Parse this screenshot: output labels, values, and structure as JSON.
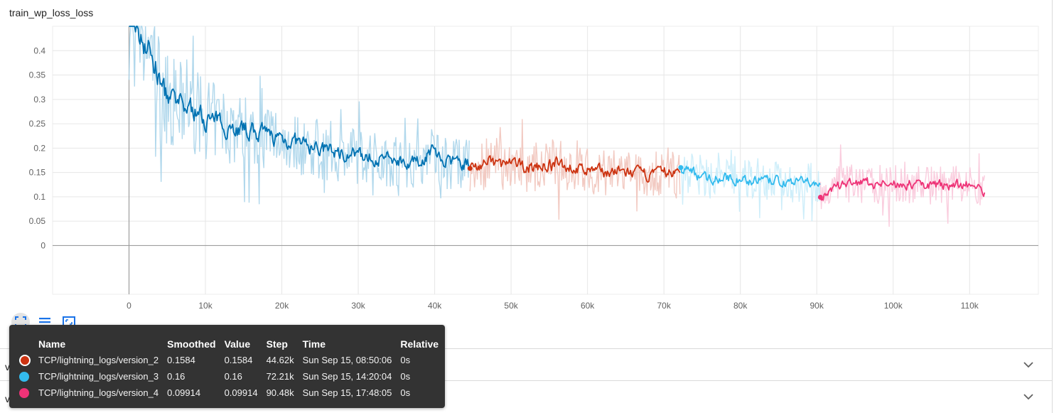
{
  "card": {
    "title": "train_wp_loss_loss"
  },
  "chart_data": {
    "type": "line",
    "title": "train_wp_loss_loss",
    "xlabel": "",
    "ylabel": "",
    "xlim": [
      -10000,
      119000
    ],
    "ylim": [
      -0.1,
      0.45
    ],
    "x_ticks": [
      0,
      10000,
      20000,
      30000,
      40000,
      50000,
      60000,
      70000,
      80000,
      90000,
      100000,
      110000
    ],
    "x_tick_labels": [
      "0",
      "10k",
      "20k",
      "30k",
      "40k",
      "50k",
      "60k",
      "70k",
      "80k",
      "90k",
      "100k",
      "110k"
    ],
    "y_ticks": [
      0,
      0.05,
      0.1,
      0.15,
      0.2,
      0.25,
      0.3,
      0.35,
      0.4
    ],
    "y_tick_labels": [
      "0",
      "0.05",
      "0.1",
      "0.15",
      "0.2",
      "0.25",
      "0.3",
      "0.35",
      "0.4"
    ],
    "grid": true,
    "series": [
      {
        "name": "",
        "color": "#0072b2",
        "raw_color": "#a9d4ea",
        "x": [
          0,
          1000,
          2000,
          3000,
          4000,
          5000,
          6000,
          8000,
          10000,
          12000,
          14000,
          16000,
          18000,
          20000,
          22000,
          24000,
          26000,
          28000,
          30000,
          32000,
          34000,
          36000,
          38000,
          39500,
          41000,
          43000,
          44620
        ],
        "y": [
          0.5,
          0.44,
          0.42,
          0.38,
          0.33,
          0.3,
          0.29,
          0.28,
          0.26,
          0.25,
          0.24,
          0.235,
          0.225,
          0.22,
          0.21,
          0.2,
          0.195,
          0.19,
          0.185,
          0.18,
          0.178,
          0.175,
          0.17,
          0.2,
          0.172,
          0.17,
          0.165
        ]
      },
      {
        "name": "TCP/lightning_logs/version_2",
        "color": "#cc3311",
        "raw_color": "#f1c4bb",
        "x": [
          44620,
          47000,
          50000,
          53000,
          56000,
          59000,
          62000,
          65000,
          68000,
          70000,
          72210
        ],
        "y": [
          0.1584,
          0.17,
          0.165,
          0.16,
          0.168,
          0.155,
          0.152,
          0.15,
          0.145,
          0.15,
          0.15
        ]
      },
      {
        "name": "TCP/lightning_logs/version_3",
        "color": "#33bbee",
        "raw_color": "#c9ecfa",
        "x": [
          72210,
          75000,
          78000,
          81000,
          84000,
          87000,
          90480
        ],
        "y": [
          0.16,
          0.14,
          0.138,
          0.135,
          0.132,
          0.13,
          0.128
        ]
      },
      {
        "name": "TCP/lightning_logs/version_4",
        "color": "#ee3377",
        "raw_color": "#f9c8da",
        "x": [
          90480,
          93000,
          96000,
          99000,
          102000,
          105000,
          108000,
          110000,
          112000
        ],
        "y": [
          0.09914,
          0.125,
          0.128,
          0.125,
          0.126,
          0.124,
          0.125,
          0.125,
          0.11
        ]
      }
    ],
    "highlight_points": [
      {
        "x": 44620,
        "y": 0.1584,
        "color": "#cc3311"
      },
      {
        "x": 72210,
        "y": 0.16,
        "color": "#33bbee"
      },
      {
        "x": 90480,
        "y": 0.09914,
        "color": "#ee3377"
      }
    ]
  },
  "toolbar": {
    "icons": [
      "fit-domain-icon",
      "toggle-log-icon",
      "fullscreen-icon"
    ]
  },
  "tooltip": {
    "headers": {
      "name": "Name",
      "smoothed": "Smoothed",
      "value": "Value",
      "step": "Step",
      "time": "Time",
      "relative": "Relative"
    },
    "rows": [
      {
        "color": "#cc3311",
        "current": true,
        "name": "TCP/lightning_logs/version_2",
        "smoothed": "0.1584",
        "value": "0.1584",
        "step": "44.62k",
        "time": "Sun Sep 15, 08:50:06",
        "relative": "0s"
      },
      {
        "color": "#33bbee",
        "current": false,
        "name": "TCP/lightning_logs/version_3",
        "smoothed": "0.16",
        "value": "0.16",
        "step": "72.21k",
        "time": "Sun Sep 15, 14:20:04",
        "relative": "0s"
      },
      {
        "color": "#ee3377",
        "current": false,
        "name": "TCP/lightning_logs/version_4",
        "smoothed": "0.09914",
        "value": "0.09914",
        "step": "90.48k",
        "time": "Sun Sep 15, 17:48:05",
        "relative": "0s"
      }
    ]
  },
  "sections": [
    {
      "title": "val_action_loss"
    },
    {
      "title": "val_feature_loss"
    }
  ]
}
